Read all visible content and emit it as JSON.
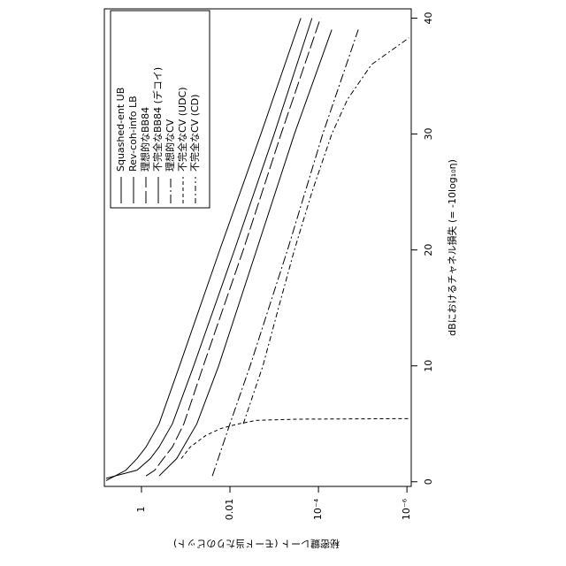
{
  "chart_data": {
    "type": "line",
    "x_label": "dBにおけるチャネル損失 (= -10log₁₀η)",
    "y_label": "秘密鍵レート (モード当たりのビット)",
    "xlim": [
      -0.4,
      40.8
    ],
    "xticks": [
      0,
      10,
      20,
      30,
      40
    ],
    "ylim": [
      6.9,
      8e-07
    ],
    "y_log": true,
    "yticks": [
      {
        "value": 1,
        "label": "1"
      },
      {
        "value": 0.01,
        "label": "0.01"
      },
      {
        "value": 0.0001,
        "label": "10⁻⁴"
      },
      {
        "value": 1e-06,
        "label": "10⁻⁶"
      }
    ],
    "legend": "top-left",
    "series": [
      {
        "name": "Squashed-ent UB",
        "color": "#000000",
        "dash": "none",
        "x": [
          0.1,
          1,
          2,
          3,
          5,
          10,
          20,
          30,
          40
        ],
        "values": [
          6.3,
          2.24,
          1.26,
          0.79,
          0.4,
          0.138,
          0.017,
          0.002,
          0.00025
        ]
      },
      {
        "name": "Rev-coh-info LB",
        "color": "#000000",
        "dash": "none",
        "x": [
          0.3,
          1,
          2,
          3,
          5,
          10,
          20,
          30,
          40
        ],
        "values": [
          6.3,
          1.26,
          0.63,
          0.4,
          0.2,
          0.066,
          0.0079,
          0.001,
          0.00014
        ]
      },
      {
        "name": "理想的なBB84",
        "color": "#000000",
        "dash": "14,4",
        "x": [
          0.5,
          1,
          2,
          3,
          5,
          10,
          20,
          30,
          40
        ],
        "values": [
          0.79,
          0.5,
          0.32,
          0.2,
          0.11,
          0.04,
          0.005,
          0.0007,
          9e-05
        ]
      },
      {
        "name": "不完全なBB84 (デコイ)",
        "color": "#000000",
        "dash": "none",
        "x": [
          0.5,
          2,
          5,
          10,
          20,
          30,
          39
        ],
        "values": [
          0.4,
          0.16,
          0.056,
          0.018,
          0.0025,
          0.00035,
          5e-05
        ]
      },
      {
        "name": "理想的なCV",
        "color": "#000000",
        "dash": "10,3,2,3",
        "x": [
          0.5,
          5,
          10,
          20,
          30,
          39
        ],
        "values": [
          0.025,
          0.01,
          0.0035,
          0.0005,
          8e-05,
          1.26e-05
        ]
      },
      {
        "name": "不完全なCV (UDC)",
        "color": "#000000",
        "dash": "4,3",
        "x": [
          2,
          3,
          4,
          4.6,
          5,
          5.3,
          5.4,
          5.45
        ],
        "values": [
          0.126,
          0.079,
          0.035,
          0.016,
          0.0063,
          0.0025,
          0.0003,
          9e-07
        ]
      },
      {
        "name": "不完全なCV (CD)",
        "color": "#000000",
        "dash": "6,3,2,3",
        "x": [
          5,
          10,
          15,
          20,
          25,
          30,
          33,
          36,
          38.3
        ],
        "values": [
          0.005,
          0.0018,
          0.0008,
          0.00035,
          0.00014,
          5e-05,
          2.2e-05,
          6.3e-06,
          9e-07
        ]
      }
    ]
  }
}
